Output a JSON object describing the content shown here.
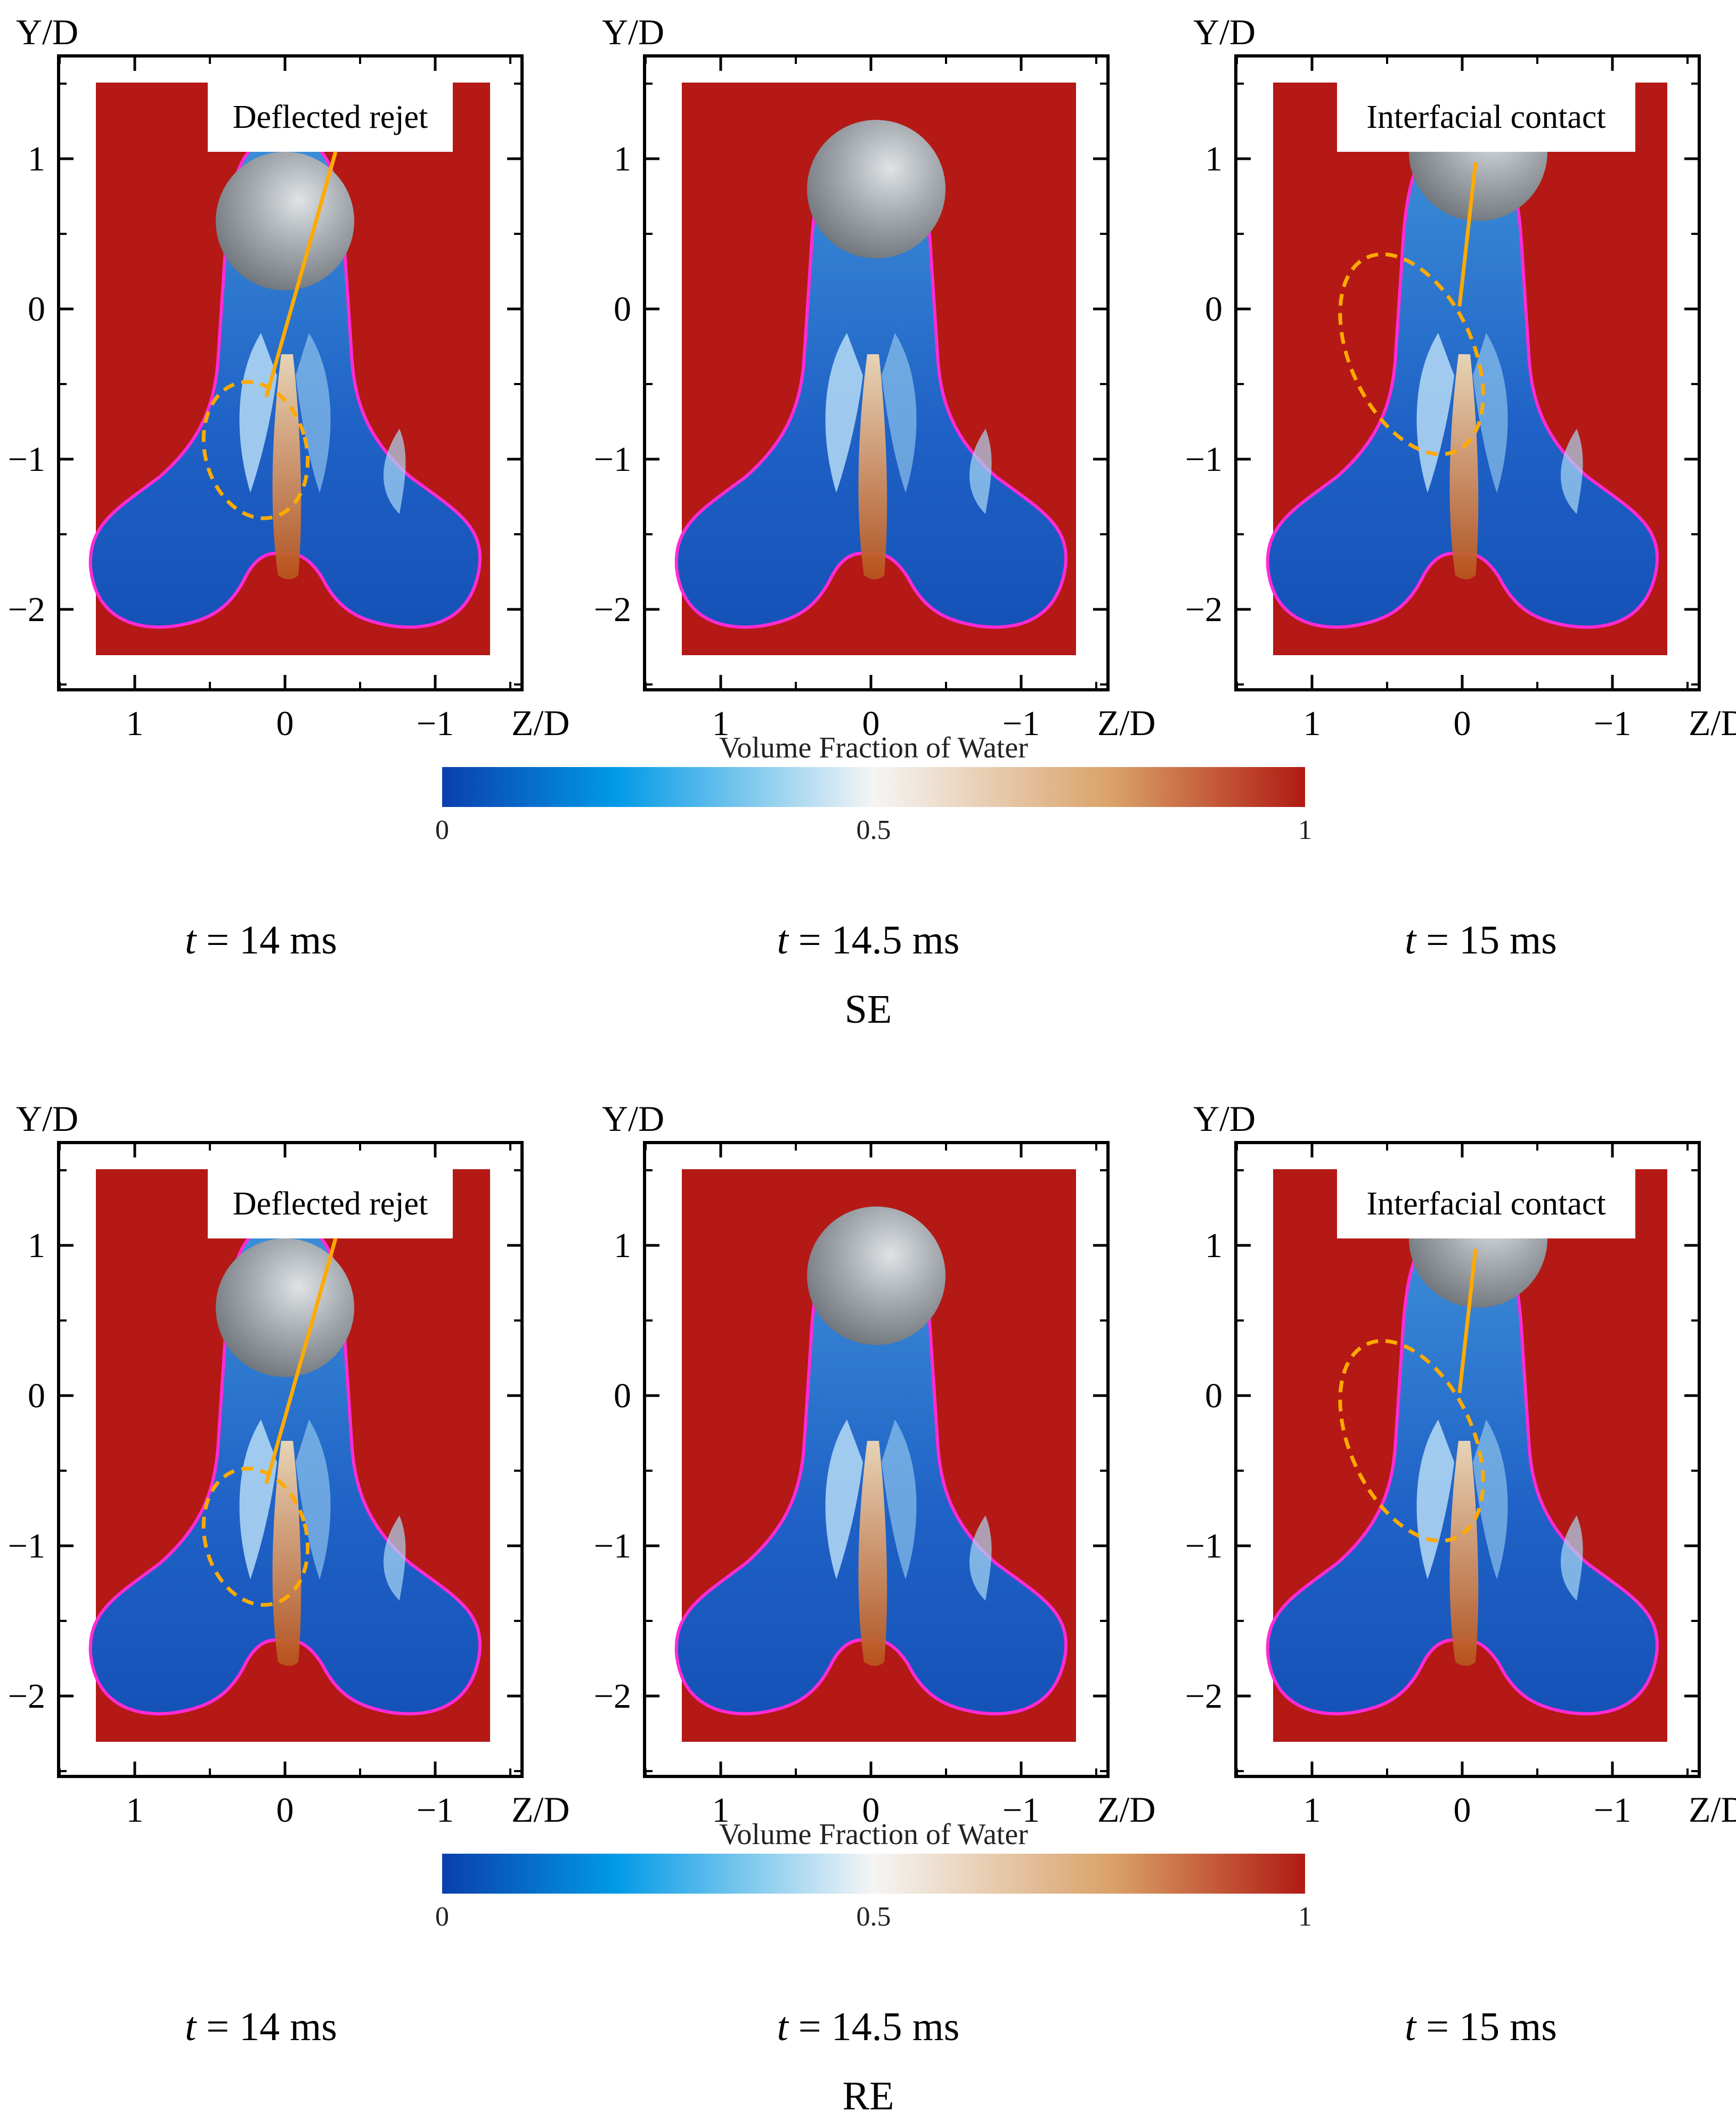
{
  "figure": {
    "groups": [
      {
        "label": "SE",
        "panels": [
          {
            "time_prefix": "t",
            "time_value": "= 14 ms",
            "annotation": "Deflected rejet"
          },
          {
            "time_prefix": "t",
            "time_value": "= 14.5 ms",
            "annotation": ""
          },
          {
            "time_prefix": "t",
            "time_value": "= 15 ms",
            "annotation": "Interfacial contact"
          }
        ]
      },
      {
        "label": "RE",
        "panels": [
          {
            "time_prefix": "t",
            "time_value": "= 14 ms",
            "annotation": "Deflected rejet"
          },
          {
            "time_prefix": "t",
            "time_value": "= 14.5 ms",
            "annotation": ""
          },
          {
            "time_prefix": "t",
            "time_value": "= 15 ms",
            "annotation": "Interfacial contact"
          }
        ]
      }
    ],
    "axes": {
      "x_label": "Z/D",
      "y_label": "Y/D",
      "x_ticks": [
        "1",
        "0",
        "−1"
      ],
      "y_ticks": [
        "1",
        "0",
        "−1",
        "−2"
      ]
    },
    "colorbar": {
      "title": "Volume Fraction of Water",
      "ticks": [
        "0",
        "0.5",
        "1"
      ],
      "colors": [
        "#0b3fae",
        "#0099e6",
        "#f5f5f5",
        "#d9a066",
        "#b01a12"
      ]
    },
    "colors": {
      "air": "#b41915",
      "water_dark": "#1e5cc4",
      "water_mid": "#2f86d8",
      "interface": "#ff2bd6",
      "sphere": "#9ea4a9",
      "annotation": "#ffaa00"
    }
  }
}
